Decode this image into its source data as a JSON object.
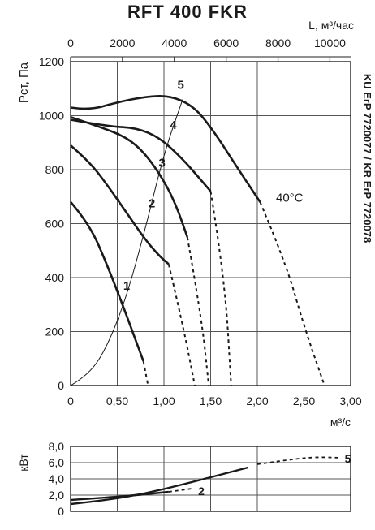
{
  "title": "RFT 400 FKR",
  "chart_data": [
    {
      "type": "line",
      "name": "pressure",
      "ylabel": "Pст, Па",
      "xlabel": "м³/с",
      "top_axis_label": "L, м³/час",
      "side_label": "KU ErP 7720077 / KR ErP 7720078",
      "annotation": "40°C",
      "xlim": [
        0,
        3.0
      ],
      "ylim": [
        0,
        1200
      ],
      "top_xlim": [
        0,
        10800
      ],
      "grid": true,
      "x_ticks": [
        "0",
        "0,50",
        "1,00",
        "1,50",
        "2,00",
        "2,50",
        "3,00"
      ],
      "y_ticks": [
        "0",
        "200",
        "400",
        "600",
        "800",
        "1000",
        "1200"
      ],
      "top_ticks": [
        "0",
        "2000",
        "4000",
        "6000",
        "8000",
        "10000"
      ],
      "series": [
        {
          "name": "1",
          "solid": [
            [
              0,
              680
            ],
            [
              0.2,
              600
            ],
            [
              0.4,
              440
            ],
            [
              0.6,
              260
            ],
            [
              0.78,
              90
            ]
          ],
          "dashed": [
            [
              0.78,
              90
            ],
            [
              0.83,
              0
            ]
          ]
        },
        {
          "name": "2",
          "solid": [
            [
              0,
              890
            ],
            [
              0.2,
              830
            ],
            [
              0.4,
              740
            ],
            [
              0.6,
              640
            ],
            [
              0.8,
              540
            ],
            [
              0.95,
              480
            ],
            [
              1.05,
              450
            ]
          ],
          "dashed": [
            [
              1.05,
              450
            ],
            [
              1.2,
              230
            ],
            [
              1.33,
              0
            ]
          ]
        },
        {
          "name": "3",
          "solid": [
            [
              0,
              995
            ],
            [
              0.3,
              960
            ],
            [
              0.6,
              920
            ],
            [
              0.8,
              860
            ],
            [
              1.0,
              760
            ],
            [
              1.14,
              660
            ],
            [
              1.25,
              550
            ]
          ],
          "dashed": [
            [
              1.25,
              550
            ],
            [
              1.4,
              260
            ],
            [
              1.48,
              0
            ]
          ]
        },
        {
          "name": "4",
          "solid": [
            [
              0,
              985
            ],
            [
              0.4,
              960
            ],
            [
              0.7,
              955
            ],
            [
              0.95,
              920
            ],
            [
              1.2,
              840
            ],
            [
              1.4,
              760
            ],
            [
              1.5,
              720
            ]
          ],
          "dashed": [
            [
              1.5,
              720
            ],
            [
              1.65,
              400
            ],
            [
              1.72,
              0
            ]
          ]
        },
        {
          "name": "5",
          "solid": [
            [
              0,
              1030
            ],
            [
              0.2,
              1020
            ],
            [
              0.5,
              1050
            ],
            [
              0.8,
              1070
            ],
            [
              1.05,
              1075
            ],
            [
              1.3,
              1040
            ],
            [
              1.5,
              960
            ],
            [
              1.8,
              800
            ],
            [
              2.03,
              680
            ]
          ],
          "dashed": [
            [
              2.03,
              680
            ],
            [
              2.3,
              460
            ],
            [
              2.5,
              220
            ],
            [
              2.72,
              0
            ]
          ]
        },
        {
          "name": "system",
          "solid": [
            [
              0,
              0
            ],
            [
              0.2,
              40
            ],
            [
              0.4,
              150
            ],
            [
              0.6,
              330
            ],
            [
              0.8,
              580
            ],
            [
              1.0,
              860
            ],
            [
              1.2,
              1060
            ]
          ],
          "dashed": []
        }
      ],
      "curve_labels": [
        {
          "text": "1",
          "x": 0.6,
          "y": 355
        },
        {
          "text": "2",
          "x": 0.87,
          "y": 660
        },
        {
          "text": "3",
          "x": 0.98,
          "y": 810
        },
        {
          "text": "4",
          "x": 1.1,
          "y": 950
        },
        {
          "text": "5",
          "x": 1.18,
          "y": 1100
        }
      ],
      "annotation_point": {
        "x": 2.2,
        "y": 700
      }
    },
    {
      "type": "line",
      "name": "power",
      "ylabel": "кВт",
      "xlim": [
        0,
        3.0
      ],
      "ylim": [
        0,
        8.0
      ],
      "grid": true,
      "y_ticks": [
        "0",
        "2,0",
        "4,0",
        "6,0",
        "8,0"
      ],
      "series": [
        {
          "name": "2",
          "solid": [
            [
              0,
              1.4
            ],
            [
              0.4,
              1.7
            ],
            [
              0.8,
              2.1
            ],
            [
              1.05,
              2.4
            ]
          ],
          "dashed": [
            [
              1.05,
              2.4
            ],
            [
              1.3,
              2.8
            ]
          ]
        },
        {
          "name": "5",
          "solid": [
            [
              0,
              0.9
            ],
            [
              0.4,
              1.4
            ],
            [
              0.8,
              2.2
            ],
            [
              1.2,
              3.3
            ],
            [
              1.6,
              4.5
            ],
            [
              1.9,
              5.4
            ]
          ],
          "dashed": [
            [
              2.0,
              5.8
            ],
            [
              2.3,
              6.3
            ],
            [
              2.6,
              6.7
            ],
            [
              2.9,
              6.6
            ]
          ]
        }
      ],
      "curve_labels": [
        {
          "text": "2",
          "x": 1.4,
          "y": 2.5
        },
        {
          "text": "5",
          "x": 2.97,
          "y": 6.5
        }
      ]
    }
  ]
}
